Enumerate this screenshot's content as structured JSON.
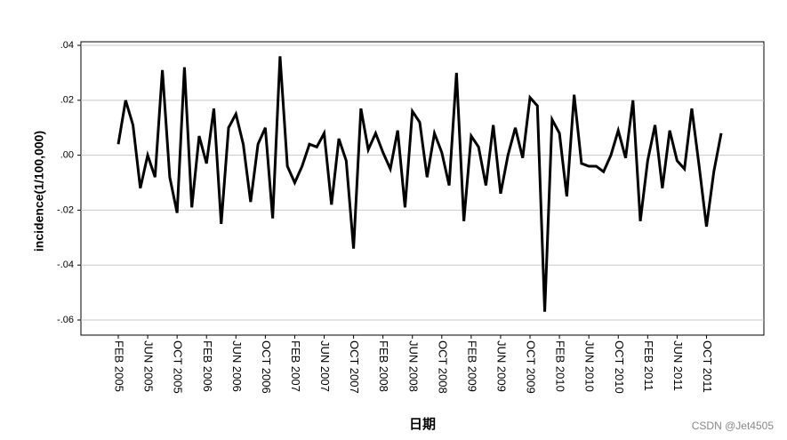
{
  "chart_data": {
    "type": "line",
    "y_label": "incidence(1/100,000)",
    "x_label": "日期",
    "watermark": "CSDN @Jet4505",
    "categories": [
      "FEB 2005",
      null,
      null,
      null,
      "JUN 2005",
      null,
      null,
      null,
      "OCT 2005",
      null,
      null,
      null,
      "FEB 2006",
      null,
      null,
      null,
      "JUN 2006",
      null,
      null,
      null,
      "OCT 2006",
      null,
      null,
      null,
      "FEB 2007",
      null,
      null,
      null,
      "JUN 2007",
      null,
      null,
      null,
      "OCT 2007",
      null,
      null,
      null,
      "FEB 2008",
      null,
      null,
      null,
      "JUN 2008",
      null,
      null,
      null,
      "OCT 2008",
      null,
      null,
      null,
      "FEB 2009",
      null,
      null,
      null,
      "JUN 2009",
      null,
      null,
      null,
      "OCT 2009",
      null,
      null,
      null,
      "FEB 2010",
      null,
      null,
      null,
      "JUN 2010",
      null,
      null,
      null,
      "OCT 2010",
      null,
      null,
      null,
      "FEB 2011",
      null,
      null,
      null,
      "JUN 2011",
      null,
      null,
      null,
      "OCT 2011",
      null,
      null
    ],
    "values": [
      0.004,
      0.02,
      0.011,
      -0.012,
      0.0,
      -0.008,
      0.031,
      -0.008,
      -0.021,
      0.032,
      -0.019,
      0.007,
      -0.003,
      0.017,
      -0.025,
      0.01,
      0.015,
      0.004,
      -0.017,
      0.004,
      0.01,
      -0.023,
      0.036,
      -0.004,
      -0.01,
      -0.004,
      0.004,
      0.003,
      0.008,
      -0.018,
      0.006,
      -0.002,
      -0.034,
      0.017,
      0.002,
      0.008,
      0.001,
      -0.005,
      0.009,
      -0.019,
      0.016,
      0.012,
      -0.008,
      0.008,
      0.001,
      -0.011,
      0.03,
      -0.024,
      0.007,
      0.003,
      -0.011,
      0.011,
      -0.014,
      0.0,
      0.01,
      -0.001,
      0.021,
      0.018,
      -0.057,
      0.013,
      0.008,
      -0.015,
      0.022,
      -0.003,
      -0.004,
      -0.004,
      -0.006,
      0.0,
      0.009,
      -0.001,
      0.02,
      -0.024,
      -0.002,
      0.011,
      -0.012,
      0.009,
      -0.002,
      -0.005,
      0.017,
      -0.004,
      -0.026,
      -0.006,
      0.008
    ],
    "color": "#000000",
    "ylim": [
      -0.0655,
      0.0413
    ],
    "yticks": [
      {
        "value": -0.06,
        "label": "-.06"
      },
      {
        "value": -0.04,
        "label": "-.04"
      },
      {
        "value": -0.02,
        "label": "-.02"
      },
      {
        "value": 0,
        "label": ".00"
      },
      {
        "value": 0.02,
        "label": ".02"
      },
      {
        "value": 0.04,
        "label": ".04"
      }
    ],
    "grid": true
  }
}
